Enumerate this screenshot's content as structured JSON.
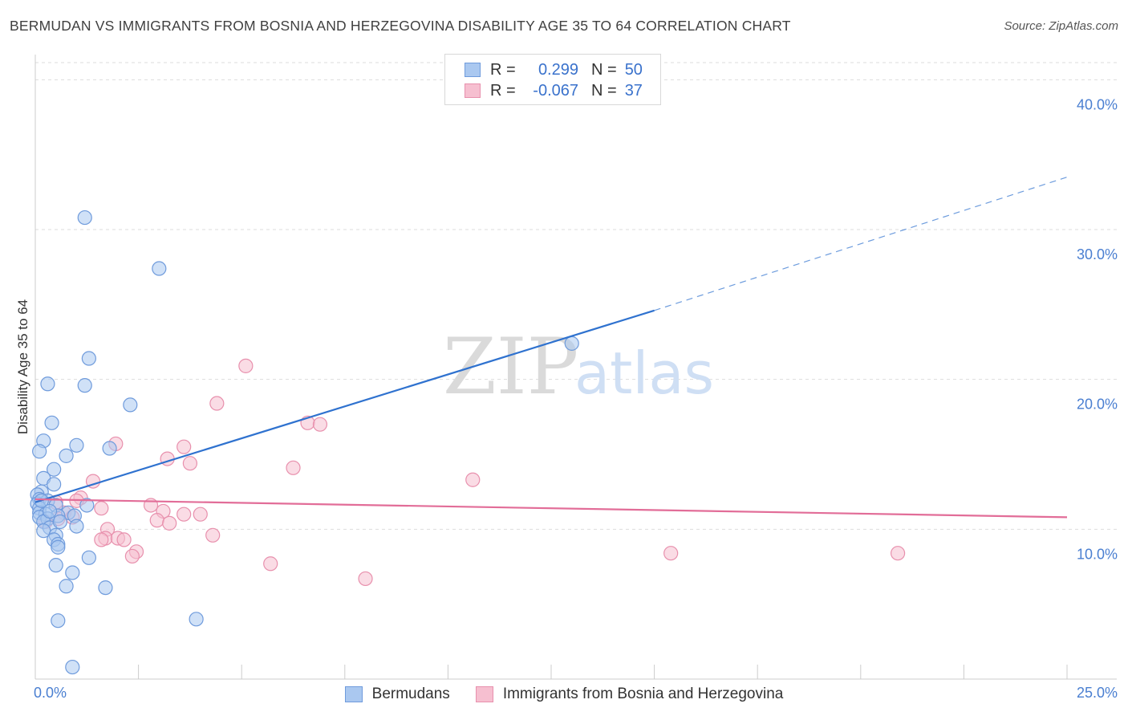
{
  "title": "BERMUDAN VS IMMIGRANTS FROM BOSNIA AND HERZEGOVINA DISABILITY AGE 35 TO 64 CORRELATION CHART",
  "source": "Source: ZipAtlas.com",
  "watermark": {
    "zip": "ZIP",
    "atlas": "atlas"
  },
  "legend": {
    "rows": [
      {
        "r_label": "R =",
        "r_value": "0.299",
        "n_label": "N =",
        "n_value": "50"
      },
      {
        "r_label": "R =",
        "r_value": "-0.067",
        "n_label": "N =",
        "n_value": "37"
      }
    ]
  },
  "bottom_legend": {
    "items": [
      {
        "label": "Bermudans"
      },
      {
        "label": "Immigrants from Bosnia and Herzegovina"
      }
    ]
  },
  "colors": {
    "blue_fill": "#aac8f0",
    "blue_stroke": "#6f9bdc",
    "blue_line": "#2f72cf",
    "pink_fill": "#f6bfd0",
    "pink_stroke": "#e890ad",
    "pink_line": "#e26d98",
    "tick_text": "#4a7fd1",
    "grid": "#dddddd"
  },
  "chart_data": {
    "type": "scatter",
    "title": "BERMUDAN VS IMMIGRANTS FROM BOSNIA AND HERZEGOVINA DISABILITY AGE 35 TO 64 CORRELATION CHART",
    "xlabel": "",
    "ylabel": "Disability Age 35 to 64",
    "xlim": [
      0,
      25
    ],
    "ylim": [
      0,
      42
    ],
    "x_ticks": [
      {
        "v": 0,
        "label": "0.0%"
      },
      {
        "v": 25,
        "label": "25.0%"
      }
    ],
    "y_ticks": [
      {
        "v": 10,
        "label": "10.0%"
      },
      {
        "v": 20,
        "label": "20.0%"
      },
      {
        "v": 30,
        "label": "30.0%"
      },
      {
        "v": 40,
        "label": "40.0%"
      }
    ],
    "series": [
      {
        "name": "Bermudans",
        "color": "blue",
        "points": [
          [
            1.2,
            30.8
          ],
          [
            3.0,
            27.4
          ],
          [
            13.0,
            22.4
          ],
          [
            1.3,
            21.4
          ],
          [
            0.3,
            19.7
          ],
          [
            1.2,
            19.6
          ],
          [
            2.3,
            18.3
          ],
          [
            0.4,
            17.1
          ],
          [
            0.2,
            15.9
          ],
          [
            1.0,
            15.6
          ],
          [
            1.8,
            15.4
          ],
          [
            0.1,
            15.2
          ],
          [
            0.75,
            14.9
          ],
          [
            0.45,
            14.0
          ],
          [
            0.2,
            13.4
          ],
          [
            0.45,
            13.0
          ],
          [
            0.15,
            12.5
          ],
          [
            0.05,
            12.3
          ],
          [
            0.1,
            12.0
          ],
          [
            0.3,
            11.9
          ],
          [
            0.05,
            11.7
          ],
          [
            0.5,
            11.6
          ],
          [
            1.25,
            11.6
          ],
          [
            0.1,
            11.4
          ],
          [
            0.8,
            11.1
          ],
          [
            0.1,
            11.1
          ],
          [
            0.25,
            11.0
          ],
          [
            0.55,
            10.9
          ],
          [
            0.95,
            10.9
          ],
          [
            0.1,
            10.8
          ],
          [
            0.3,
            10.7
          ],
          [
            0.2,
            10.5
          ],
          [
            1.0,
            10.2
          ],
          [
            0.35,
            10.1
          ],
          [
            0.2,
            9.9
          ],
          [
            0.5,
            9.6
          ],
          [
            0.45,
            9.3
          ],
          [
            0.55,
            9.0
          ],
          [
            0.55,
            8.8
          ],
          [
            1.3,
            8.1
          ],
          [
            0.5,
            7.6
          ],
          [
            0.9,
            7.1
          ],
          [
            0.75,
            6.2
          ],
          [
            1.7,
            6.1
          ],
          [
            0.55,
            3.9
          ],
          [
            3.9,
            4.0
          ],
          [
            0.9,
            0.8
          ],
          [
            0.15,
            11.9
          ],
          [
            0.35,
            11.2
          ],
          [
            0.6,
            10.5
          ]
        ],
        "trend": {
          "x0": 0,
          "y0": 11.8,
          "x1": 15,
          "y1": 24.6,
          "dash_x1": 25,
          "dash_y1": 33.5
        }
      },
      {
        "name": "Immigrants from Bosnia and Herzegovina",
        "color": "pink",
        "points": [
          [
            5.1,
            20.9
          ],
          [
            4.4,
            18.4
          ],
          [
            6.6,
            17.1
          ],
          [
            6.9,
            17.0
          ],
          [
            1.95,
            15.7
          ],
          [
            3.6,
            15.5
          ],
          [
            3.2,
            14.7
          ],
          [
            3.75,
            14.4
          ],
          [
            6.25,
            14.1
          ],
          [
            10.6,
            13.3
          ],
          [
            1.4,
            13.2
          ],
          [
            1.1,
            12.1
          ],
          [
            1.0,
            11.9
          ],
          [
            0.5,
            11.8
          ],
          [
            2.8,
            11.6
          ],
          [
            1.6,
            11.4
          ],
          [
            3.1,
            11.2
          ],
          [
            0.7,
            11.1
          ],
          [
            3.6,
            11.0
          ],
          [
            4.0,
            11.0
          ],
          [
            0.9,
            10.8
          ],
          [
            0.55,
            10.7
          ],
          [
            2.95,
            10.6
          ],
          [
            3.25,
            10.4
          ],
          [
            0.25,
            10.5
          ],
          [
            1.75,
            10.0
          ],
          [
            4.3,
            9.6
          ],
          [
            1.7,
            9.4
          ],
          [
            2.0,
            9.4
          ],
          [
            2.15,
            9.3
          ],
          [
            1.6,
            9.3
          ],
          [
            2.45,
            8.5
          ],
          [
            2.35,
            8.2
          ],
          [
            15.4,
            8.4
          ],
          [
            20.9,
            8.4
          ],
          [
            5.7,
            7.7
          ],
          [
            8.0,
            6.7
          ]
        ],
        "trend": {
          "x0": 0,
          "y0": 12.0,
          "x1": 25,
          "y1": 10.8
        }
      }
    ]
  }
}
